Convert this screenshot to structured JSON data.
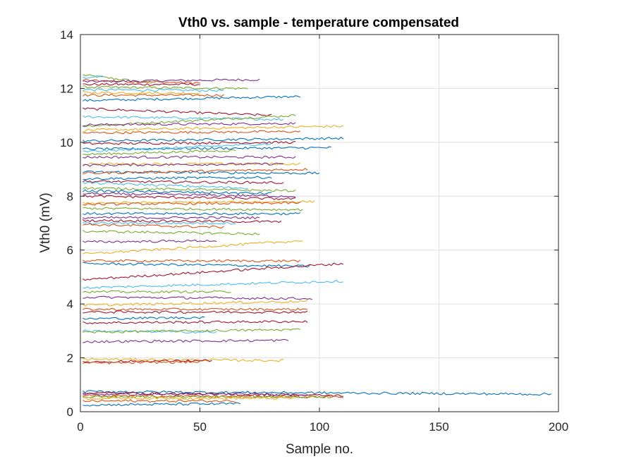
{
  "chart_data": {
    "type": "line",
    "title": "Vth0 vs. sample - temperature compensated",
    "xlabel": "Sample no.",
    "ylabel": "Vth0 (mV)",
    "xlim": [
      0,
      200
    ],
    "ylim": [
      0,
      14
    ],
    "xticks": [
      0,
      50,
      100,
      150,
      200
    ],
    "yticks": [
      0,
      2,
      4,
      6,
      8,
      10,
      12,
      14
    ],
    "xtick_labels": [
      "0",
      "50",
      "100",
      "150",
      "200"
    ],
    "ytick_labels": [
      "0",
      "2",
      "4",
      "6",
      "8",
      "10",
      "12",
      "14"
    ],
    "grid": true,
    "legend": "none",
    "colors": [
      "#0072BD",
      "#D95319",
      "#EDB120",
      "#7E2F8E",
      "#77AC30",
      "#4DBEEE",
      "#A2142F"
    ],
    "series": [
      {
        "values_start": 12.5,
        "length": 30,
        "end_value": 12.2,
        "color": "#77AC30"
      },
      {
        "values_start": 12.4,
        "length": 10,
        "end_value": 12.45,
        "color": "#4DBEEE"
      },
      {
        "values_start": 12.3,
        "length": 50,
        "end_value": 12.2,
        "color": "#D95319"
      },
      {
        "values_start": 12.25,
        "length": 75,
        "end_value": 12.33,
        "color": "#7E2F8E"
      },
      {
        "values_start": 12.15,
        "length": 50,
        "end_value": 12.15,
        "color": "#A2142F"
      },
      {
        "values_start": 12.05,
        "length": 70,
        "end_value": 12.0,
        "color": "#77AC30"
      },
      {
        "values_start": 11.95,
        "length": 60,
        "end_value": 11.92,
        "color": "#4DBEEE"
      },
      {
        "values_start": 11.85,
        "length": 50,
        "end_value": 11.82,
        "color": "#EDB120"
      },
      {
        "values_start": 11.75,
        "length": 60,
        "end_value": 11.75,
        "color": "#D95319"
      },
      {
        "values_start": 11.55,
        "length": 92,
        "end_value": 11.7,
        "color": "#0072BD"
      },
      {
        "values_start": 11.25,
        "length": 80,
        "end_value": 11.0,
        "color": "#A2142F"
      },
      {
        "values_start": 10.95,
        "length": 85,
        "end_value": 10.85,
        "color": "#4DBEEE"
      },
      {
        "values_start": 10.6,
        "length": 90,
        "end_value": 11.0,
        "color": "#77AC30"
      },
      {
        "values_start": 10.65,
        "length": 90,
        "end_value": 10.7,
        "color": "#7E2F8E"
      },
      {
        "values_start": 10.45,
        "length": 110,
        "end_value": 10.6,
        "color": "#EDB120"
      },
      {
        "values_start": 10.35,
        "length": 92,
        "end_value": 10.4,
        "color": "#D95319"
      },
      {
        "values_start": 10.05,
        "length": 110,
        "end_value": 10.15,
        "color": "#0072BD"
      },
      {
        "values_start": 9.95,
        "length": 90,
        "end_value": 10.0,
        "color": "#A2142F"
      },
      {
        "values_start": 9.75,
        "length": 105,
        "end_value": 9.8,
        "color": "#0072BD"
      },
      {
        "values_start": 9.65,
        "length": 80,
        "end_value": 9.95,
        "color": "#4DBEEE"
      },
      {
        "values_start": 9.55,
        "length": 65,
        "end_value": 9.7,
        "color": "#77AC30"
      },
      {
        "values_start": 9.45,
        "length": 90,
        "end_value": 9.45,
        "color": "#7E2F8E"
      },
      {
        "values_start": 9.2,
        "length": 92,
        "end_value": 9.2,
        "color": "#EDB120"
      },
      {
        "values_start": 9.15,
        "length": 85,
        "end_value": 9.2,
        "color": "#7E2F8E"
      },
      {
        "values_start": 8.9,
        "length": 100,
        "end_value": 8.85,
        "color": "#0072BD"
      },
      {
        "values_start": 8.85,
        "length": 95,
        "end_value": 9.0,
        "color": "#D95319"
      },
      {
        "values_start": 8.65,
        "length": 80,
        "end_value": 8.7,
        "color": "#0072BD"
      },
      {
        "values_start": 8.55,
        "length": 85,
        "end_value": 8.5,
        "color": "#A2142F"
      },
      {
        "values_start": 8.5,
        "length": 70,
        "end_value": 8.3,
        "color": "#4DBEEE"
      },
      {
        "values_start": 8.3,
        "length": 90,
        "end_value": 8.2,
        "color": "#77AC30"
      },
      {
        "values_start": 8.2,
        "length": 80,
        "end_value": 8.1,
        "color": "#0072BD"
      },
      {
        "values_start": 8.1,
        "length": 90,
        "end_value": 8.0,
        "color": "#7E2F8E"
      },
      {
        "values_start": 8.0,
        "length": 90,
        "end_value": 7.9,
        "color": "#A2142F"
      },
      {
        "values_start": 7.75,
        "length": 98,
        "end_value": 7.8,
        "color": "#EDB120"
      },
      {
        "values_start": 7.7,
        "length": 92,
        "end_value": 7.75,
        "color": "#D95319"
      },
      {
        "values_start": 7.55,
        "length": 93,
        "end_value": 7.5,
        "color": "#77AC30"
      },
      {
        "values_start": 7.35,
        "length": 92,
        "end_value": 7.35,
        "color": "#0072BD"
      },
      {
        "values_start": 7.2,
        "length": 75,
        "end_value": 7.2,
        "color": "#7E2F8E"
      },
      {
        "values_start": 7.1,
        "length": 84,
        "end_value": 7.05,
        "color": "#A2142F"
      },
      {
        "values_start": 7.0,
        "length": 65,
        "end_value": 7.0,
        "color": "#4DBEEE"
      },
      {
        "values_start": 6.95,
        "length": 60,
        "end_value": 6.85,
        "color": "#D95319"
      },
      {
        "values_start": 6.7,
        "length": 75,
        "end_value": 6.6,
        "color": "#77AC30"
      },
      {
        "values_start": 6.3,
        "length": 57,
        "end_value": 6.35,
        "color": "#7E2F8E"
      },
      {
        "values_start": 5.85,
        "length": 93,
        "end_value": 6.35,
        "color": "#EDB120"
      },
      {
        "values_start": 5.6,
        "length": 92,
        "end_value": 5.6,
        "color": "#D95319"
      },
      {
        "values_start": 5.5,
        "length": 96,
        "end_value": 5.4,
        "color": "#0072BD"
      },
      {
        "values_start": 4.9,
        "length": 110,
        "end_value": 5.5,
        "color": "#A2142F"
      },
      {
        "values_start": 4.6,
        "length": 110,
        "end_value": 4.85,
        "color": "#4DBEEE"
      },
      {
        "values_start": 4.45,
        "length": 63,
        "end_value": 4.45,
        "color": "#77AC30"
      },
      {
        "values_start": 4.25,
        "length": 97,
        "end_value": 4.2,
        "color": "#7E2F8E"
      },
      {
        "values_start": 3.95,
        "length": 95,
        "end_value": 4.1,
        "color": "#EDB120"
      },
      {
        "values_start": 3.8,
        "length": 95,
        "end_value": 3.8,
        "color": "#D95319"
      },
      {
        "values_start": 3.7,
        "length": 95,
        "end_value": 3.7,
        "color": "#A2142F"
      },
      {
        "values_start": 3.45,
        "length": 52,
        "end_value": 3.5,
        "color": "#0072BD"
      },
      {
        "values_start": 3.3,
        "length": 95,
        "end_value": 3.35,
        "color": "#A2142F"
      },
      {
        "values_start": 3.0,
        "length": 57,
        "end_value": 2.95,
        "color": "#4DBEEE"
      },
      {
        "values_start": 2.95,
        "length": 92,
        "end_value": 3.05,
        "color": "#77AC30"
      },
      {
        "values_start": 2.6,
        "length": 87,
        "end_value": 2.65,
        "color": "#7E2F8E"
      },
      {
        "values_start": 1.95,
        "length": 85,
        "end_value": 1.9,
        "color": "#EDB120"
      },
      {
        "values_start": 1.85,
        "length": 55,
        "end_value": 1.9,
        "color": "#A2142F"
      },
      {
        "values_start": 1.8,
        "length": 50,
        "end_value": 1.85,
        "color": "#D95319"
      },
      {
        "values_start": 0.75,
        "length": 197,
        "end_value": 0.65,
        "color": "#0072BD"
      },
      {
        "values_start": 0.7,
        "length": 110,
        "end_value": 0.6,
        "color": "#A2142F"
      },
      {
        "values_start": 0.65,
        "length": 95,
        "end_value": 0.65,
        "color": "#7E2F8E"
      },
      {
        "values_start": 0.6,
        "length": 110,
        "end_value": 0.55,
        "color": "#D95319"
      },
      {
        "values_start": 0.55,
        "length": 105,
        "end_value": 0.55,
        "color": "#77AC30"
      },
      {
        "values_start": 0.5,
        "length": 90,
        "end_value": 0.5,
        "color": "#EDB120"
      },
      {
        "values_start": 0.4,
        "length": 65,
        "end_value": 0.4,
        "color": "#D95319"
      },
      {
        "values_start": 0.25,
        "length": 67,
        "end_value": 0.3,
        "color": "#0072BD"
      }
    ]
  }
}
